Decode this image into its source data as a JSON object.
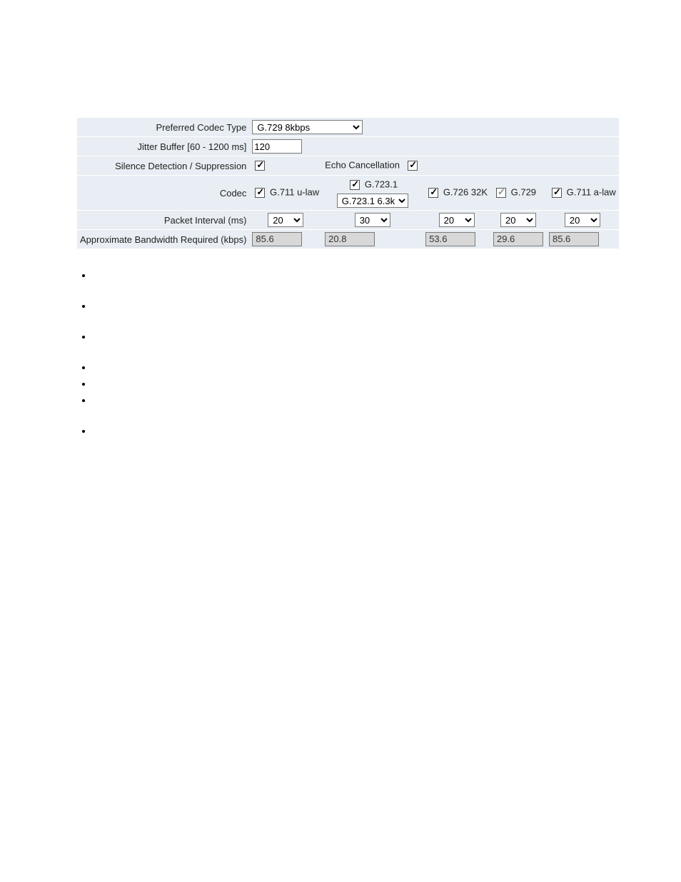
{
  "colors": {
    "row_bg": "#e8eef3",
    "readonly_bg": "#d8d8d8",
    "border": "#7a7a7a"
  },
  "rows": {
    "preferred": {
      "label": "Preferred Codec Type",
      "value": "G.729 8kbps"
    },
    "jitter": {
      "label": "Jitter Buffer [60 - 1200 ms]",
      "value": "120"
    },
    "silence": {
      "label": "Silence Detection / Suppression",
      "checked": true,
      "echo_label": "Echo Cancellation",
      "echo_checked": true
    },
    "codec": {
      "label": "Codec",
      "items": [
        {
          "name": "G.711 u-law",
          "checked": true,
          "gray": false
        },
        {
          "name": "G.723.1",
          "checked": true,
          "gray": false,
          "sub_select": "G.723.1 6.3k"
        },
        {
          "name": "G.726 32K",
          "checked": true,
          "gray": false
        },
        {
          "name": "G.729",
          "checked": true,
          "gray": true
        },
        {
          "name": "G.711 a-law",
          "checked": true,
          "gray": false
        }
      ]
    },
    "packet": {
      "label": "Packet Interval (ms)",
      "values": [
        "20",
        "30",
        "20",
        "20",
        "20"
      ]
    },
    "bandwidth": {
      "label": "Approximate Bandwidth Required (kbps)",
      "values": [
        "85.6",
        "20.8",
        "53.6",
        "29.6",
        "85.6"
      ]
    }
  }
}
